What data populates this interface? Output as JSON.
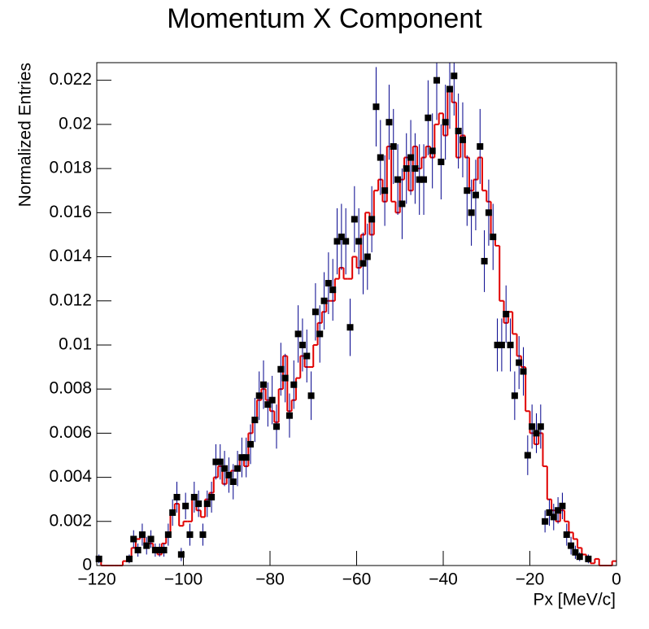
{
  "chart_data": {
    "type": "histogram",
    "title": "Momentum X Component",
    "x_label": "Px [MeV/c]",
    "y_label": "Normalized Entries",
    "xlim": [
      -120,
      0
    ],
    "ylim": [
      0,
      0.0228
    ],
    "xticks": [
      {
        "value": -120,
        "label": "−120"
      },
      {
        "value": -100,
        "label": "−100"
      },
      {
        "value": -80,
        "label": "−80"
      },
      {
        "value": -60,
        "label": "−60"
      },
      {
        "value": -40,
        "label": "−40"
      },
      {
        "value": -20,
        "label": "−20"
      },
      0
    ],
    "yticks": [
      0,
      0.002,
      0.004,
      0.006,
      0.008,
      0.01,
      0.012,
      0.014,
      0.016,
      0.018,
      0.02,
      0.022
    ],
    "bins": [
      -120,
      -119,
      -118,
      -117,
      -116,
      -115,
      -114,
      -113,
      -112,
      -111,
      -110,
      -109,
      -108,
      -107,
      -106,
      -105,
      -104,
      -103,
      -102,
      -101,
      -100,
      -99,
      -98,
      -97,
      -96,
      -95,
      -94,
      -93,
      -92,
      -91,
      -90,
      -89,
      -88,
      -87,
      -86,
      -85,
      -84,
      -83,
      -82,
      -81,
      -80,
      -79,
      -78,
      -77,
      -76,
      -75,
      -74,
      -73,
      -72,
      -71,
      -70,
      -69,
      -68,
      -67,
      -66,
      -65,
      -64,
      -63,
      -62,
      -61,
      -60,
      -59,
      -58,
      -57,
      -56,
      -55,
      -54,
      -53,
      -52,
      -51,
      -50,
      -49,
      -48,
      -47,
      -46,
      -45,
      -44,
      -43,
      -42,
      -41,
      -40,
      -39,
      -38,
      -37,
      -36,
      -35,
      -34,
      -33,
      -32,
      -31,
      -30,
      -29,
      -28,
      -27,
      -26,
      -25,
      -24,
      -23,
      -22,
      -21,
      -20,
      -19,
      -18,
      -17,
      -16,
      -15,
      -14,
      -13,
      -12,
      -11,
      -10,
      -9,
      -8,
      -7,
      -6,
      -5,
      -4,
      -3,
      -2,
      -1,
      0
    ],
    "series": [
      {
        "style": "step",
        "color": "#e00000",
        "values": [
          0.0003,
          0,
          0,
          0,
          0,
          0,
          0.0002,
          0.0003,
          0.0008,
          0.0012,
          0.0015,
          0.001,
          0.001,
          0.0008,
          0.0005,
          0.001,
          0.0015,
          0.0025,
          0.0028,
          0.0018,
          0.002,
          0.002,
          0.003,
          0.0025,
          0.0022,
          0.003,
          0.0033,
          0.004,
          0.0045,
          0.0037,
          0.004,
          0.0043,
          0.0045,
          0.0048,
          0.0045,
          0.006,
          0.0065,
          0.0075,
          0.008,
          0.0075,
          0.007,
          0.0065,
          0.008,
          0.0095,
          0.007,
          0.0075,
          0.0085,
          0.0095,
          0.009,
          0.009,
          0.01,
          0.011,
          0.0115,
          0.012,
          0.012,
          0.013,
          0.0135,
          0.013,
          0.013,
          0.014,
          0.0135,
          0.015,
          0.016,
          0.015,
          0.017,
          0.0175,
          0.0165,
          0.019,
          0.0165,
          0.016,
          0.0175,
          0.0185,
          0.017,
          0.019,
          0.018,
          0.0185,
          0.019,
          0.0185,
          0.02,
          0.0205,
          0.0195,
          0.0215,
          0.021,
          0.0185,
          0.0195,
          0.0185,
          0.017,
          0.0175,
          0.0185,
          0.017,
          0.0165,
          0.015,
          0.0145,
          0.012,
          0.011,
          0.0115,
          0.0105,
          0.0095,
          0.009,
          0.007,
          0.006,
          0.0055,
          0.006,
          0.0045,
          0.003,
          0.0025,
          0.002,
          0.0025,
          0.002,
          0.0015,
          0.0012,
          0.0008,
          0.0005,
          0.0003,
          0.0001,
          0.0003,
          0,
          0,
          0,
          0.0002
        ]
      },
      {
        "style": "markers",
        "color": "#000000",
        "error_color": "#00008b",
        "values": [
          0.0003,
          null,
          null,
          null,
          null,
          null,
          null,
          0.0003,
          0.0012,
          0.0007,
          0.0014,
          0.0009,
          0.0012,
          0.0007,
          0.0007,
          0.0007,
          0.0014,
          0.0024,
          0.0031,
          0.0005,
          0.0027,
          0.0014,
          0.0031,
          0.0028,
          0.0014,
          0.0028,
          0.0031,
          0.0047,
          0.0047,
          0.0044,
          0.0041,
          0.0038,
          0.0044,
          0.0049,
          0.0049,
          0.0055,
          0.0066,
          0.0077,
          0.0082,
          0.0073,
          0.0075,
          0.0063,
          0.0089,
          0.0085,
          0.0068,
          0.0082,
          0.0105,
          0.01,
          0.0095,
          0.0077,
          0.0115,
          0.0105,
          0.012,
          0.0128,
          0.0125,
          0.0147,
          0.0149,
          0.0147,
          0.0108,
          0.0157,
          0.0147,
          0.0137,
          0.014,
          0.0157,
          0.0208,
          0.0185,
          0.017,
          0.0201,
          0.019,
          0.0175,
          0.0164,
          0.018,
          0.0185,
          0.018,
          0.0175,
          0.0175,
          0.0203,
          0.0188,
          0.022,
          0.0183,
          0.0201,
          0.0216,
          0.0222,
          0.0197,
          0.0193,
          0.017,
          0.016,
          0.0168,
          0.019,
          0.0138,
          0.016,
          0.0149,
          0.01,
          0.01,
          0.0114,
          0.01,
          0.0077,
          0.0092,
          0.0088,
          0.005,
          0.0063,
          0.006,
          0.0063,
          0.002,
          0.0024,
          0.0022,
          0.0025,
          0.0027,
          0.0014,
          0.0009,
          0.0006,
          0.0004,
          null,
          0.0003,
          null,
          null,
          null,
          null,
          null,
          null
        ],
        "errors": [
          0.0002,
          null,
          null,
          null,
          null,
          null,
          null,
          0.0002,
          0.0004,
          0.0003,
          0.0005,
          0.0004,
          0.0004,
          0.0003,
          0.0003,
          0.0003,
          0.0005,
          0.0006,
          0.0007,
          0.0003,
          0.0006,
          0.0005,
          0.0007,
          0.0006,
          0.0005,
          0.0006,
          0.0007,
          0.0008,
          0.0008,
          0.0008,
          0.0008,
          0.0008,
          0.0008,
          0.0009,
          0.0009,
          0.0009,
          0.001,
          0.0011,
          0.0011,
          0.001,
          0.0011,
          0.001,
          0.0012,
          0.0011,
          0.001,
          0.0011,
          0.0013,
          0.0012,
          0.0012,
          0.0011,
          0.0013,
          0.0013,
          0.0013,
          0.0014,
          0.0014,
          0.0015,
          0.0015,
          0.0015,
          0.0013,
          0.0015,
          0.0015,
          0.0014,
          0.0015,
          0.0015,
          0.0018,
          0.0017,
          0.0016,
          0.0017,
          0.0017,
          0.0016,
          0.0016,
          0.0016,
          0.0017,
          0.0016,
          0.0016,
          0.0016,
          0.0017,
          0.0017,
          0.0018,
          0.0017,
          0.0017,
          0.0018,
          0.0018,
          0.0017,
          0.0017,
          0.0016,
          0.0015,
          0.0016,
          0.0017,
          0.0014,
          0.0015,
          0.0015,
          0.0012,
          0.0012,
          0.0013,
          0.0012,
          0.0011,
          0.0012,
          0.0011,
          0.0009,
          0.001,
          0.0009,
          0.001,
          0.0005,
          0.0006,
          0.0006,
          0.0006,
          0.0006,
          0.0005,
          0.0004,
          0.0003,
          0.0002,
          null,
          0.0002,
          null,
          null,
          null,
          null,
          null,
          null
        ]
      }
    ]
  }
}
